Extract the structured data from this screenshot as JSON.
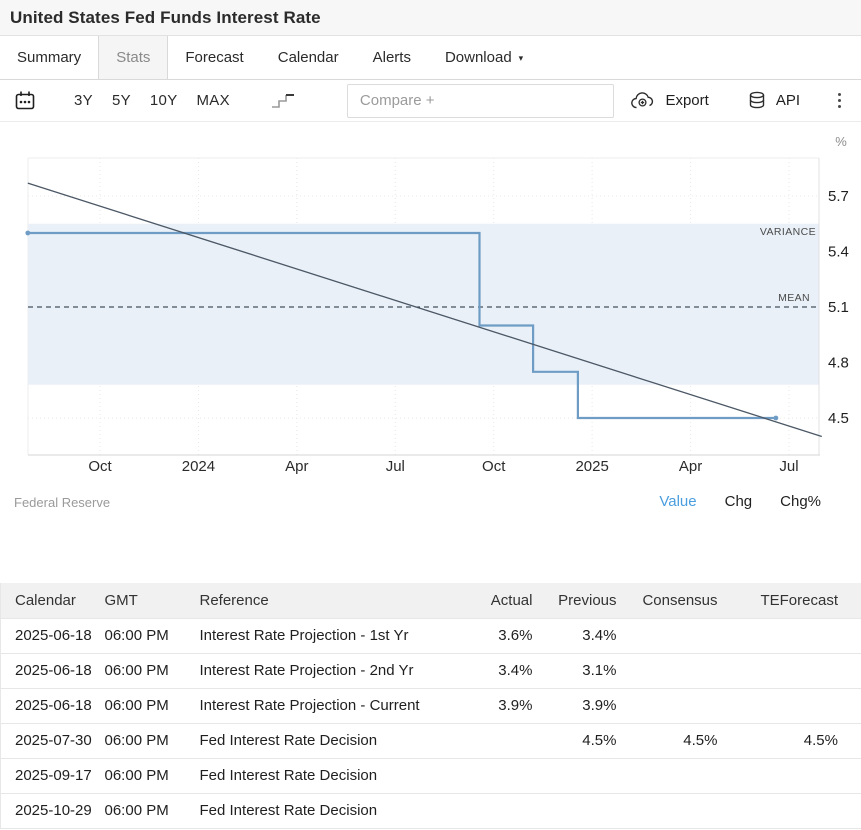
{
  "page": {
    "title": "United States Fed Funds Interest Rate"
  },
  "tabs": {
    "items": [
      {
        "label": "Summary",
        "active": false
      },
      {
        "label": "Stats",
        "active": true
      },
      {
        "label": "Forecast",
        "active": false
      },
      {
        "label": "Calendar",
        "active": false
      },
      {
        "label": "Alerts",
        "active": false
      },
      {
        "label": "Download",
        "active": false,
        "has_caret": true
      }
    ]
  },
  "toolbar": {
    "ranges": [
      "3Y",
      "5Y",
      "10Y",
      "MAX"
    ],
    "compare_placeholder": "Compare +",
    "export_label": "Export",
    "api_label": "API"
  },
  "chart": {
    "source": "Federal Reserve",
    "links": [
      "Value",
      "Chg",
      "Chg%"
    ],
    "active_link": "Value",
    "unit": "%"
  },
  "chart_data": {
    "type": "line",
    "title": "United States Fed Funds Interest Rate",
    "unit": "%",
    "ylim": [
      4.35,
      5.85
    ],
    "grid": true,
    "legend_position": "none",
    "y_ticks": [
      5.7,
      5.4,
      5.1,
      4.8,
      4.5
    ],
    "x_ticks": [
      {
        "label": "Oct",
        "date": "2023-10-01"
      },
      {
        "label": "2024",
        "date": "2024-01-01"
      },
      {
        "label": "Apr",
        "date": "2024-04-01"
      },
      {
        "label": "Jul",
        "date": "2024-07-01"
      },
      {
        "label": "Oct",
        "date": "2024-10-01"
      },
      {
        "label": "2025",
        "date": "2025-01-01"
      },
      {
        "label": "Apr",
        "date": "2025-04-01"
      },
      {
        "label": "Jul",
        "date": "2025-07-01"
      }
    ],
    "series": [
      {
        "name": "Fed Funds Interest Rate",
        "type": "step",
        "color": "#6f9cc4",
        "points": [
          [
            "2023-07-25",
            5.5
          ],
          [
            "2024-09-18",
            5.5
          ],
          [
            "2024-09-18",
            5.0
          ],
          [
            "2024-11-07",
            5.0
          ],
          [
            "2024-11-07",
            4.75
          ],
          [
            "2024-12-18",
            4.75
          ],
          [
            "2024-12-18",
            4.5
          ],
          [
            "2025-06-19",
            4.5
          ]
        ]
      },
      {
        "name": "Trend",
        "type": "line",
        "color": "#4c5866",
        "points": [
          [
            "2023-07-25",
            5.77
          ],
          [
            "2025-08-01",
            4.4
          ]
        ]
      }
    ],
    "mean": 5.1,
    "mean_label": "MEAN",
    "variance_band": [
      4.68,
      5.55
    ],
    "variance_label": "VARIANCE",
    "band_color": "#e9f0f8"
  },
  "table": {
    "headers": [
      "Calendar",
      "GMT",
      "Reference",
      "Actual",
      "Previous",
      "Consensus",
      "TEForecast"
    ],
    "rows": [
      [
        "2025-06-18",
        "06:00 PM",
        "Interest Rate Projection - 1st Yr",
        "3.6%",
        "3.4%",
        "",
        ""
      ],
      [
        "2025-06-18",
        "06:00 PM",
        "Interest Rate Projection - 2nd Yr",
        "3.4%",
        "3.1%",
        "",
        ""
      ],
      [
        "2025-06-18",
        "06:00 PM",
        "Interest Rate Projection - Current",
        "3.9%",
        "3.9%",
        "",
        ""
      ],
      [
        "2025-07-30",
        "06:00 PM",
        "Fed Interest Rate Decision",
        "",
        "4.5%",
        "4.5%",
        "4.5%"
      ],
      [
        "2025-09-17",
        "06:00 PM",
        "Fed Interest Rate Decision",
        "",
        "",
        "",
        ""
      ],
      [
        "2025-10-29",
        "06:00 PM",
        "Fed Interest Rate Decision",
        "",
        "",
        "",
        ""
      ]
    ]
  }
}
